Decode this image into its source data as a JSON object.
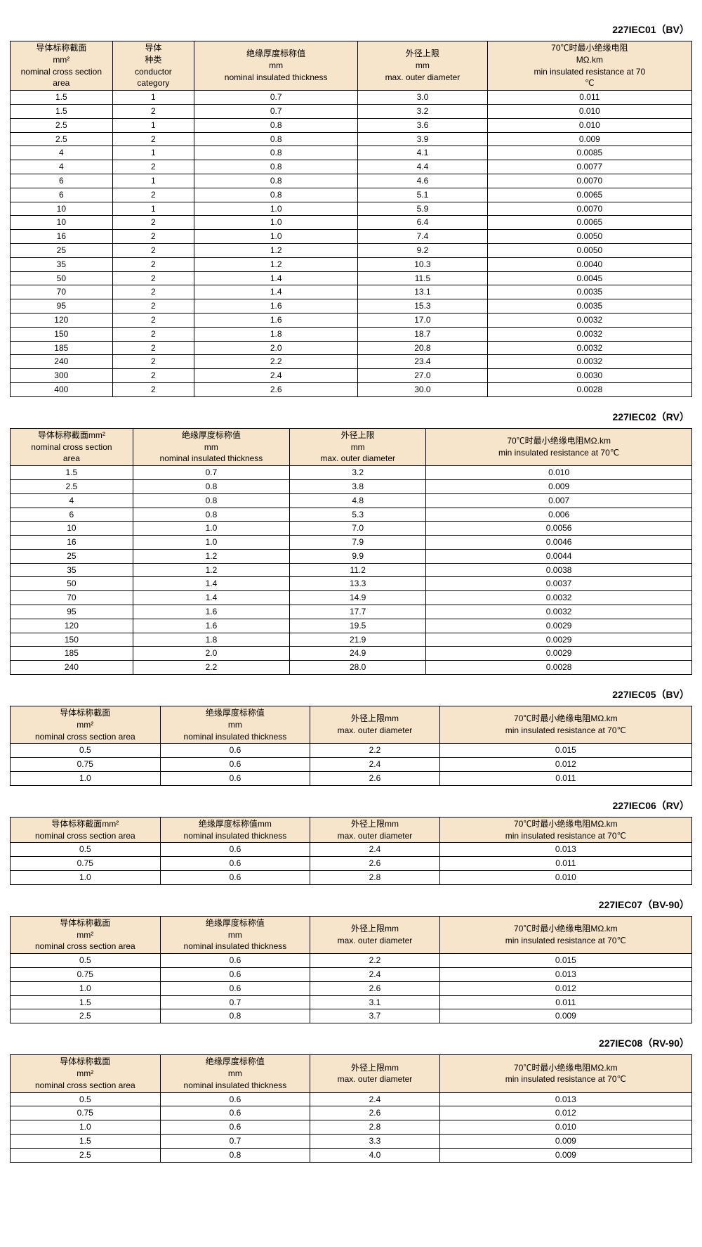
{
  "tables": [
    {
      "title_main": "227IEC01",
      "title_paren": "（BV）",
      "col_widths": [
        "15%",
        "12%",
        "24%",
        "19%",
        "30%"
      ],
      "headers": [
        "导体标称截面<br>mm²<br>nominal cross section<br>area",
        "导体<br>种类<br>conductor<br>category",
        "绝缘厚度标称值<br>mm<br>nominal insulated thickness",
        "外径上限<br>mm<br>max. outer diameter",
        "70℃时最小绝缘电阻<br>MΩ.km<br>min insulated resistance at 70<br>℃"
      ],
      "rows": [
        [
          "1.5",
          "1",
          "0.7",
          "3.0",
          "0.011"
        ],
        [
          "1.5",
          "2",
          "0.7",
          "3.2",
          "0.010"
        ],
        [
          "2.5",
          "1",
          "0.8",
          "3.6",
          "0.010"
        ],
        [
          "2.5",
          "2",
          "0.8",
          "3.9",
          "0.009"
        ],
        [
          "4",
          "1",
          "0.8",
          "4.1",
          "0.0085"
        ],
        [
          "4",
          "2",
          "0.8",
          "4.4",
          "0.0077"
        ],
        [
          "6",
          "1",
          "0.8",
          "4.6",
          "0.0070"
        ],
        [
          "6",
          "2",
          "0.8",
          "5.1",
          "0.0065"
        ],
        [
          "10",
          "1",
          "1.0",
          "5.9",
          "0.0070"
        ],
        [
          "10",
          "2",
          "1.0",
          "6.4",
          "0.0065"
        ],
        [
          "16",
          "2",
          "1.0",
          "7.4",
          "0.0050"
        ],
        [
          "25",
          "2",
          "1.2",
          "9.2",
          "0.0050"
        ],
        [
          "35",
          "2",
          "1.2",
          "10.3",
          "0.0040"
        ],
        [
          "50",
          "2",
          "1.4",
          "11.5",
          "0.0045"
        ],
        [
          "70",
          "2",
          "1.4",
          "13.1",
          "0.0035"
        ],
        [
          "95",
          "2",
          "1.6",
          "15.3",
          "0.0035"
        ],
        [
          "120",
          "2",
          "1.6",
          "17.0",
          "0.0032"
        ],
        [
          "150",
          "2",
          "1.8",
          "18.7",
          "0.0032"
        ],
        [
          "185",
          "2",
          "2.0",
          "20.8",
          "0.0032"
        ],
        [
          "240",
          "2",
          "2.2",
          "23.4",
          "0.0032"
        ],
        [
          "300",
          "2",
          "2.4",
          "27.0",
          "0.0030"
        ],
        [
          "400",
          "2",
          "2.6",
          "30.0",
          "0.0028"
        ]
      ]
    },
    {
      "title_main": "227IEC02",
      "title_paren": "（RV）",
      "col_widths": [
        "18%",
        "23%",
        "20%",
        "39%"
      ],
      "headers": [
        "导体标称截面mm²<br>nominal cross section<br>area",
        "绝缘厚度标称值<br>mm<br>nominal insulated thickness",
        "外径上限<br>mm<br>max. outer diameter",
        "70℃时最小绝缘电阻MΩ.km<br>min insulated resistance at 70℃"
      ],
      "rows": [
        [
          "1.5",
          "0.7",
          "3.2",
          "0.010"
        ],
        [
          "2.5",
          "0.8",
          "3.8",
          "0.009"
        ],
        [
          "4",
          "0.8",
          "4.8",
          "0.007"
        ],
        [
          "6",
          "0.8",
          "5.3",
          "0.006"
        ],
        [
          "10",
          "1.0",
          "7.0",
          "0.0056"
        ],
        [
          "16",
          "1.0",
          "7.9",
          "0.0046"
        ],
        [
          "25",
          "1.2",
          "9.9",
          "0.0044"
        ],
        [
          "35",
          "1.2",
          "11.2",
          "0.0038"
        ],
        [
          "50",
          "1.4",
          "13.3",
          "0.0037"
        ],
        [
          "70",
          "1.4",
          "14.9",
          "0.0032"
        ],
        [
          "95",
          "1.6",
          "17.7",
          "0.0032"
        ],
        [
          "120",
          "1.6",
          "19.5",
          "0.0029"
        ],
        [
          "150",
          "1.8",
          "21.9",
          "0.0029"
        ],
        [
          "185",
          "2.0",
          "24.9",
          "0.0029"
        ],
        [
          "240",
          "2.2",
          "28.0",
          "0.0028"
        ]
      ]
    },
    {
      "title_main": "227IEC05",
      "title_paren": "（BV）",
      "col_widths": [
        "22%",
        "22%",
        "19%",
        "37%"
      ],
      "headers": [
        "导体标称截面<br>mm²<br>nominal cross section area",
        "绝缘厚度标称值<br>mm<br>nominal insulated thickness",
        "外径上限mm<br>max. outer diameter",
        "70℃时最小绝缘电阻MΩ.km<br>min insulated resistance at 70℃"
      ],
      "rows": [
        [
          "0.5",
          "0.6",
          "2.2",
          "0.015"
        ],
        [
          "0.75",
          "0.6",
          "2.4",
          "0.012"
        ],
        [
          "1.0",
          "0.6",
          "2.6",
          "0.011"
        ]
      ]
    },
    {
      "title_main": "227IEC06",
      "title_paren": "（RV）",
      "col_widths": [
        "22%",
        "22%",
        "19%",
        "37%"
      ],
      "headers": [
        "导体标称截面mm²<br>nominal cross section area",
        "绝缘厚度标称值mm<br>nominal insulated thickness",
        "外径上限mm<br>max. outer diameter",
        "70℃时最小绝缘电阻MΩ.km<br>min insulated resistance at 70℃"
      ],
      "rows": [
        [
          "0.5",
          "0.6",
          "2.4",
          "0.013"
        ],
        [
          "0.75",
          "0.6",
          "2.6",
          "0.011"
        ],
        [
          "1.0",
          "0.6",
          "2.8",
          "0.010"
        ]
      ]
    },
    {
      "title_main": "227IEC07",
      "title_paren": "（BV-90）",
      "col_widths": [
        "22%",
        "22%",
        "19%",
        "37%"
      ],
      "headers": [
        "导体标称截面<br>mm²<br>nominal cross section area",
        "绝缘厚度标称值<br>mm<br>nominal insulated thickness",
        "外径上限mm<br>max. outer diameter",
        "70℃时最小绝缘电阻MΩ.km<br>min insulated resistance at 70℃"
      ],
      "rows": [
        [
          "0.5",
          "0.6",
          "2.2",
          "0.015"
        ],
        [
          "0.75",
          "0.6",
          "2.4",
          "0.013"
        ],
        [
          "1.0",
          "0.6",
          "2.6",
          "0.012"
        ],
        [
          "1.5",
          "0.7",
          "3.1",
          "0.011"
        ],
        [
          "2.5",
          "0.8",
          "3.7",
          "0.009"
        ]
      ]
    },
    {
      "title_main": "227IEC08",
      "title_paren": "（RV-90）",
      "col_widths": [
        "22%",
        "22%",
        "19%",
        "37%"
      ],
      "headers": [
        "导体标称截面<br>mm²<br>nominal cross section area",
        "绝缘厚度标称值<br>mm<br>nominal insulated thickness",
        "外径上限mm<br>max. outer diameter",
        "70℃时最小绝缘电阻MΩ.km<br>min insulated resistance at 70℃"
      ],
      "rows": [
        [
          "0.5",
          "0.6",
          "2.4",
          "0.013"
        ],
        [
          "0.75",
          "0.6",
          "2.6",
          "0.012"
        ],
        [
          "1.0",
          "0.6",
          "2.8",
          "0.010"
        ],
        [
          "1.5",
          "0.7",
          "3.3",
          "0.009"
        ],
        [
          "2.5",
          "0.8",
          "4.0",
          "0.009"
        ]
      ]
    }
  ]
}
